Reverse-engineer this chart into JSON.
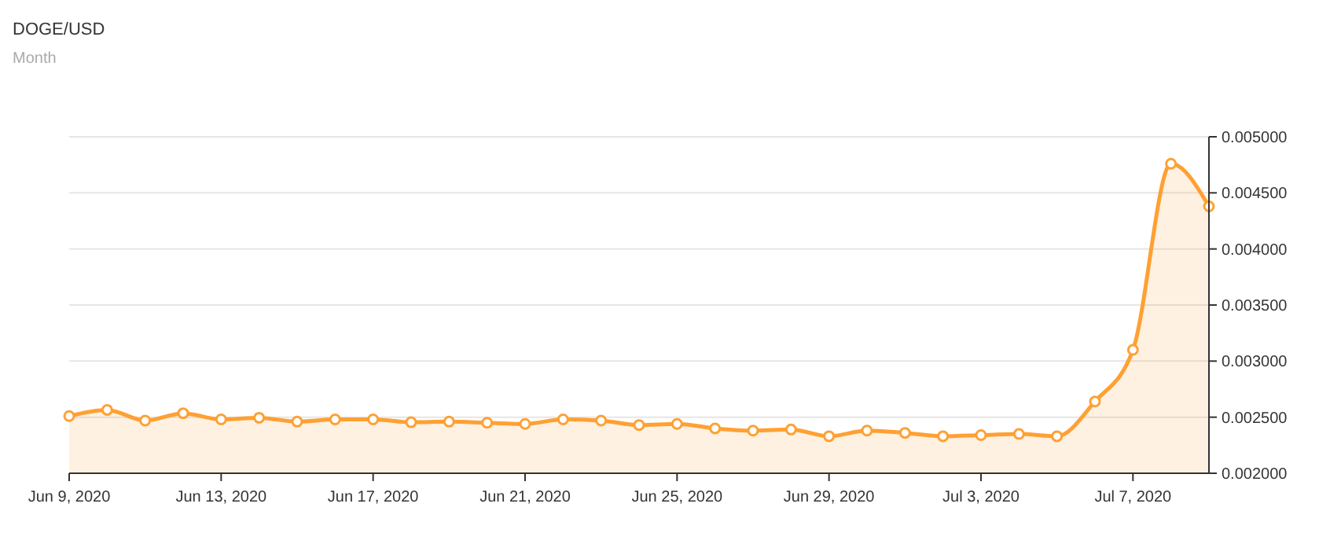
{
  "chart_data": {
    "type": "area",
    "title": "DOGE/USD",
    "subtitle": "Month",
    "x": [
      "2020-06-09",
      "2020-06-10",
      "2020-06-11",
      "2020-06-12",
      "2020-06-13",
      "2020-06-14",
      "2020-06-15",
      "2020-06-16",
      "2020-06-17",
      "2020-06-18",
      "2020-06-19",
      "2020-06-20",
      "2020-06-21",
      "2020-06-22",
      "2020-06-23",
      "2020-06-24",
      "2020-06-25",
      "2020-06-26",
      "2020-06-27",
      "2020-06-28",
      "2020-06-29",
      "2020-06-30",
      "2020-07-01",
      "2020-07-02",
      "2020-07-03",
      "2020-07-04",
      "2020-07-05",
      "2020-07-06",
      "2020-07-07",
      "2020-07-08",
      "2020-07-09"
    ],
    "series": [
      {
        "color": "#ffa033",
        "values": [
          0.00251,
          0.002565,
          0.00247,
          0.002535,
          0.00248,
          0.002495,
          0.00246,
          0.00248,
          0.00248,
          0.002455,
          0.00246,
          0.00245,
          0.00244,
          0.00248,
          0.00247,
          0.00243,
          0.00244,
          0.0024,
          0.00238,
          0.00239,
          0.00233,
          0.00238,
          0.00236,
          0.00233,
          0.00234,
          0.00235,
          0.00233,
          0.00264,
          0.0031,
          0.00476,
          0.00438
        ]
      }
    ],
    "xlim": [
      "2020-06-09",
      "2020-07-09"
    ],
    "xticks": [
      {
        "value": "2020-06-09",
        "label": "Jun 9, 2020"
      },
      {
        "value": "2020-06-13",
        "label": "Jun 13, 2020"
      },
      {
        "value": "2020-06-17",
        "label": "Jun 17, 2020"
      },
      {
        "value": "2020-06-21",
        "label": "Jun 21, 2020"
      },
      {
        "value": "2020-06-25",
        "label": "Jun 25, 2020"
      },
      {
        "value": "2020-06-29",
        "label": "Jun 29, 2020"
      },
      {
        "value": "2020-07-03",
        "label": "Jul 3, 2020"
      },
      {
        "value": "2020-07-07",
        "label": "Jul 7, 2020"
      }
    ],
    "ylim": [
      0.002,
      0.005
    ],
    "yticks": [
      {
        "value": 0.002,
        "label": "0.002000"
      },
      {
        "value": 0.0025,
        "label": "0.002500"
      },
      {
        "value": 0.003,
        "label": "0.003000"
      },
      {
        "value": 0.0035,
        "label": "0.003500"
      },
      {
        "value": 0.004,
        "label": "0.004000"
      },
      {
        "value": 0.0045,
        "label": "0.004500"
      },
      {
        "value": 0.005,
        "label": "0.005000"
      }
    ],
    "grid": "y",
    "marker": "circle",
    "line_style": "solid"
  }
}
